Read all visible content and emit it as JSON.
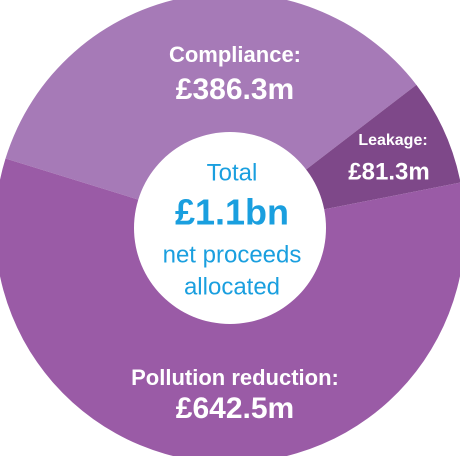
{
  "chart_data": {
    "type": "donut",
    "categories": [
      "Compliance:",
      "Leakage:",
      "Pollution reduction:"
    ],
    "values": [
      386.3,
      81.3,
      642.5
    ],
    "value_labels": [
      "£386.3m",
      "£81.3m",
      "£642.5m"
    ],
    "colors": [
      "#a67ab7",
      "#7e4889",
      "#9a5ba6"
    ],
    "center_text": {
      "total_label": "Total",
      "total_value": "£1.1bn",
      "line1": "net proceeds",
      "line2": "allocated"
    }
  }
}
